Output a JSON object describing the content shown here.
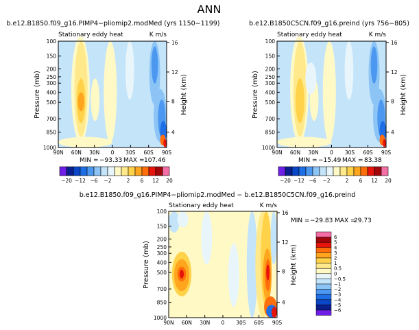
{
  "figure_title": "ANN",
  "stats_label": {
    "min": "MIN =",
    "max": "MAX ="
  },
  "palette_main": [
    "#6f1ee8",
    "#0a1f8f",
    "#0a46c8",
    "#1e6fe6",
    "#4c98f0",
    "#8cc4f6",
    "#c4e4fa",
    "#e8f6fc",
    "#fff9c6",
    "#ffe98a",
    "#ffd24a",
    "#ffa51e",
    "#ff6e0a",
    "#e6140a",
    "#a0060a",
    "#f46ea6"
  ],
  "palette_diff": [
    "#6f1ee8",
    "#0a1f8f",
    "#0a46c8",
    "#1e6fe6",
    "#4c98f0",
    "#8cc4f6",
    "#c4e4fa",
    "#e8f6fc",
    "#fff9c6",
    "#ffe98a",
    "#ffd24a",
    "#ffa51e",
    "#ff6e0a",
    "#e6140a",
    "#a0060a",
    "#f46ea6"
  ],
  "chart_data": [
    {
      "type": "heatmap",
      "title": "b.e12.B1850.f09_g16.PIMP4−pliomip2.modMed (yrs 1150−1199)",
      "subtitle_left": "Stationary eddy heat",
      "subtitle_right": "K m/s",
      "ylabel": "Pressure (mb)",
      "y2label": "Height (km)",
      "x_ticks": [
        "90N",
        "60N",
        "30N",
        "0",
        "30S",
        "60S",
        "90S"
      ],
      "y_ticks": [
        "100",
        "150",
        "200",
        "250",
        "300",
        "400",
        "500",
        "700",
        "850",
        "1000"
      ],
      "y2_ticks": [
        "16",
        "12",
        "8",
        "4"
      ],
      "min": "−93.33",
      "max": "107.46",
      "colorbar_ticks": [
        "−20",
        "−12",
        "−6",
        "−2",
        "2",
        "6",
        "12",
        "20"
      ]
    },
    {
      "type": "heatmap",
      "title": "b.e12.B1850C5CN.f09_g16.preind (yrs 756−805)",
      "subtitle_left": "Stationary eddy heat",
      "subtitle_right": "K m/s",
      "ylabel": "Pressure (mb)",
      "y2label": "Height (km)",
      "x_ticks": [
        "90N",
        "60N",
        "30N",
        "0",
        "30S",
        "60S",
        "90S"
      ],
      "y_ticks": [
        "100",
        "150",
        "200",
        "250",
        "300",
        "400",
        "500",
        "700",
        "850",
        "1000"
      ],
      "y2_ticks": [
        "16",
        "12",
        "8",
        "4"
      ],
      "min": "−15.49",
      "max": "83.38",
      "colorbar_ticks": [
        "−20",
        "−12",
        "−6",
        "−2",
        "2",
        "6",
        "12",
        "20"
      ]
    },
    {
      "type": "heatmap",
      "title": "b.e12.B1850.f09_g16.PIMP4−pliomip2.modMed − b.e12.B1850C5CN.f09_g16.preind",
      "subtitle_left": "Stationary eddy heat",
      "subtitle_right": "K m/s",
      "ylabel": "Pressure (mb)",
      "y2label": "Height (km)",
      "x_ticks": [
        "90N",
        "60N",
        "30N",
        "0",
        "30S",
        "60S",
        "90S"
      ],
      "y_ticks": [
        "100",
        "150",
        "200",
        "250",
        "300",
        "400",
        "500",
        "700",
        "850",
        "1000"
      ],
      "y2_ticks": [
        "16",
        "12",
        "8",
        "4"
      ],
      "min": "−29.83",
      "max": "29.73",
      "colorbar_ticks": [
        "6",
        "5",
        "4",
        "3",
        "2",
        "1",
        "0.5",
        "0",
        "−0.5",
        "−1",
        "−2",
        "−3",
        "−4",
        "−5",
        "−6"
      ]
    }
  ]
}
